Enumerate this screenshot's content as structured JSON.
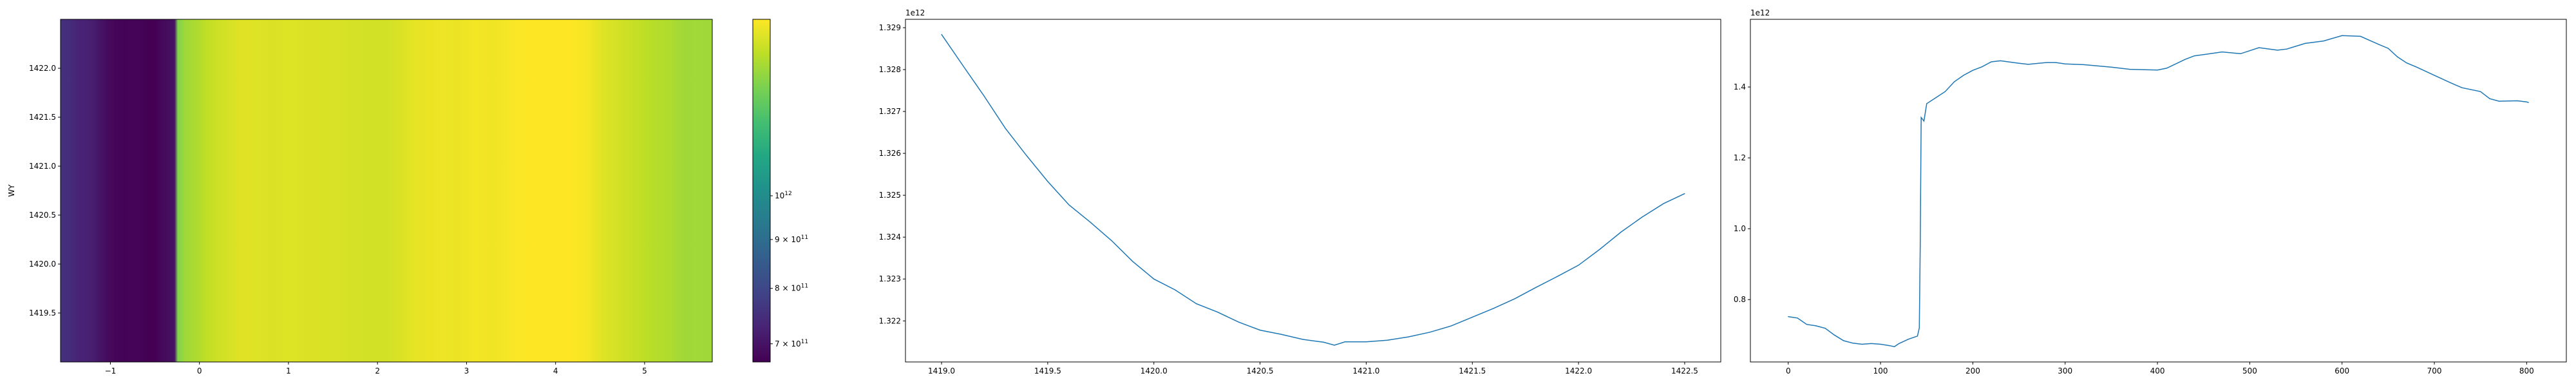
{
  "chart_data": [
    {
      "type": "heatmap",
      "ylabel": "WY",
      "xlabel": "",
      "xlim": [
        -1.56,
        5.76
      ],
      "ylim": [
        1419.0,
        1422.5
      ],
      "xticks": [
        -1,
        0,
        1,
        2,
        3,
        4,
        5
      ],
      "xtick_labels": [
        "−1",
        "0",
        "1",
        "2",
        "3",
        "4",
        "5"
      ],
      "yticks": [
        1419.5,
        1420.0,
        1420.5,
        1421.0,
        1421.5,
        1422.0
      ],
      "ytick_labels": [
        "1419.5",
        "1420.0",
        "1420.5",
        "1421.0",
        "1421.5",
        "1422.0"
      ],
      "colormap": "viridis",
      "colorbar": {
        "scale": "log",
        "range": [
          670000000000.0,
          1530000000000.0
        ],
        "ticks": [
          700000000000.0,
          800000000000.0,
          900000000000.0,
          1000000000000.0
        ],
        "tick_labels": [
          {
            "mant": "7 × 10",
            "exp": "11"
          },
          {
            "mant": "8 × 10",
            "exp": "11"
          },
          {
            "mant": "9 × 10",
            "exp": "11"
          },
          {
            "mant": "10",
            "exp": "12"
          }
        ]
      },
      "note_values": "each column's value follows the profile shown in the third panel; constant along y"
    },
    {
      "type": "line",
      "xlabel": "",
      "ylabel": "",
      "offset_label": "1e12",
      "xlim": [
        1418.83,
        1422.67
      ],
      "ylim": [
        1.32102,
        1.3292
      ],
      "xticks": [
        1419.0,
        1419.5,
        1420.0,
        1420.5,
        1421.0,
        1421.5,
        1422.0,
        1422.5
      ],
      "xtick_labels": [
        "1419.0",
        "1419.5",
        "1420.0",
        "1420.5",
        "1421.0",
        "1421.5",
        "1422.0",
        "1422.5"
      ],
      "yticks": [
        1.322,
        1.323,
        1.324,
        1.325,
        1.326,
        1.327,
        1.328,
        1.329
      ],
      "ytick_labels": [
        "1.322",
        "1.323",
        "1.324",
        "1.325",
        "1.326",
        "1.327",
        "1.328",
        "1.329"
      ],
      "color": "#1f77b4",
      "x": [
        1419.0,
        1419.1,
        1419.2,
        1419.3,
        1419.4,
        1419.5,
        1419.6,
        1419.7,
        1419.8,
        1419.9,
        1420.0,
        1420.1,
        1420.2,
        1420.3,
        1420.4,
        1420.5,
        1420.6,
        1420.7,
        1420.8,
        1420.85,
        1420.9,
        1421.0,
        1421.1,
        1421.2,
        1421.3,
        1421.4,
        1421.5,
        1421.6,
        1421.7,
        1421.8,
        1421.9,
        1422.0,
        1422.1,
        1422.2,
        1422.3,
        1422.4,
        1422.5
      ],
      "y": [
        1.32884,
        1.3281,
        1.32737,
        1.3266,
        1.32595,
        1.32533,
        1.32477,
        1.32436,
        1.32392,
        1.32342,
        1.323,
        1.32274,
        1.32241,
        1.32221,
        1.32197,
        1.32178,
        1.32168,
        1.32156,
        1.32149,
        1.32142,
        1.3215,
        1.3215,
        1.32154,
        1.32162,
        1.32173,
        1.32188,
        1.32209,
        1.3223,
        1.32253,
        1.3228,
        1.32306,
        1.32333,
        1.32371,
        1.32412,
        1.32448,
        1.3248,
        1.32504
      ]
    },
    {
      "type": "line",
      "xlabel": "",
      "ylabel": "",
      "offset_label": "1e12",
      "xlim": [
        -41,
        843
      ],
      "ylim": [
        0.624,
        1.591
      ],
      "xticks": [
        0,
        100,
        200,
        300,
        400,
        500,
        600,
        700,
        800
      ],
      "xtick_labels": [
        "0",
        "100",
        "200",
        "300",
        "400",
        "500",
        "600",
        "700",
        "800"
      ],
      "yticks": [
        0.8,
        1.0,
        1.2,
        1.4
      ],
      "ytick_labels": [
        "0.8",
        "1.0",
        "1.2",
        "1.4"
      ],
      "color": "#1f77b4",
      "x": [
        0,
        10,
        20,
        30,
        40,
        50,
        60,
        70,
        80,
        90,
        100,
        110,
        115,
        120,
        130,
        140,
        142,
        143,
        144,
        147,
        150,
        160,
        170,
        180,
        190,
        200,
        210,
        220,
        230,
        250,
        260,
        280,
        290,
        300,
        320,
        350,
        370,
        400,
        410,
        430,
        440,
        460,
        470,
        490,
        510,
        530,
        540,
        560,
        580,
        600,
        620,
        640,
        650,
        660,
        670,
        680,
        700,
        720,
        730,
        750,
        760,
        770,
        790,
        800,
        802
      ],
      "y": [
        0.752,
        0.748,
        0.73,
        0.726,
        0.719,
        0.7,
        0.684,
        0.677,
        0.674,
        0.676,
        0.674,
        0.67,
        0.667,
        0.676,
        0.688,
        0.697,
        0.72,
        0.95,
        1.314,
        1.304,
        1.353,
        1.37,
        1.387,
        1.415,
        1.433,
        1.447,
        1.457,
        1.471,
        1.474,
        1.467,
        1.464,
        1.469,
        1.469,
        1.465,
        1.463,
        1.456,
        1.45,
        1.448,
        1.453,
        1.478,
        1.488,
        1.495,
        1.499,
        1.494,
        1.511,
        1.504,
        1.507,
        1.523,
        1.53,
        1.545,
        1.543,
        1.52,
        1.509,
        1.485,
        1.468,
        1.457,
        1.433,
        1.409,
        1.398,
        1.387,
        1.367,
        1.36,
        1.361,
        1.358,
        1.356
      ]
    }
  ]
}
